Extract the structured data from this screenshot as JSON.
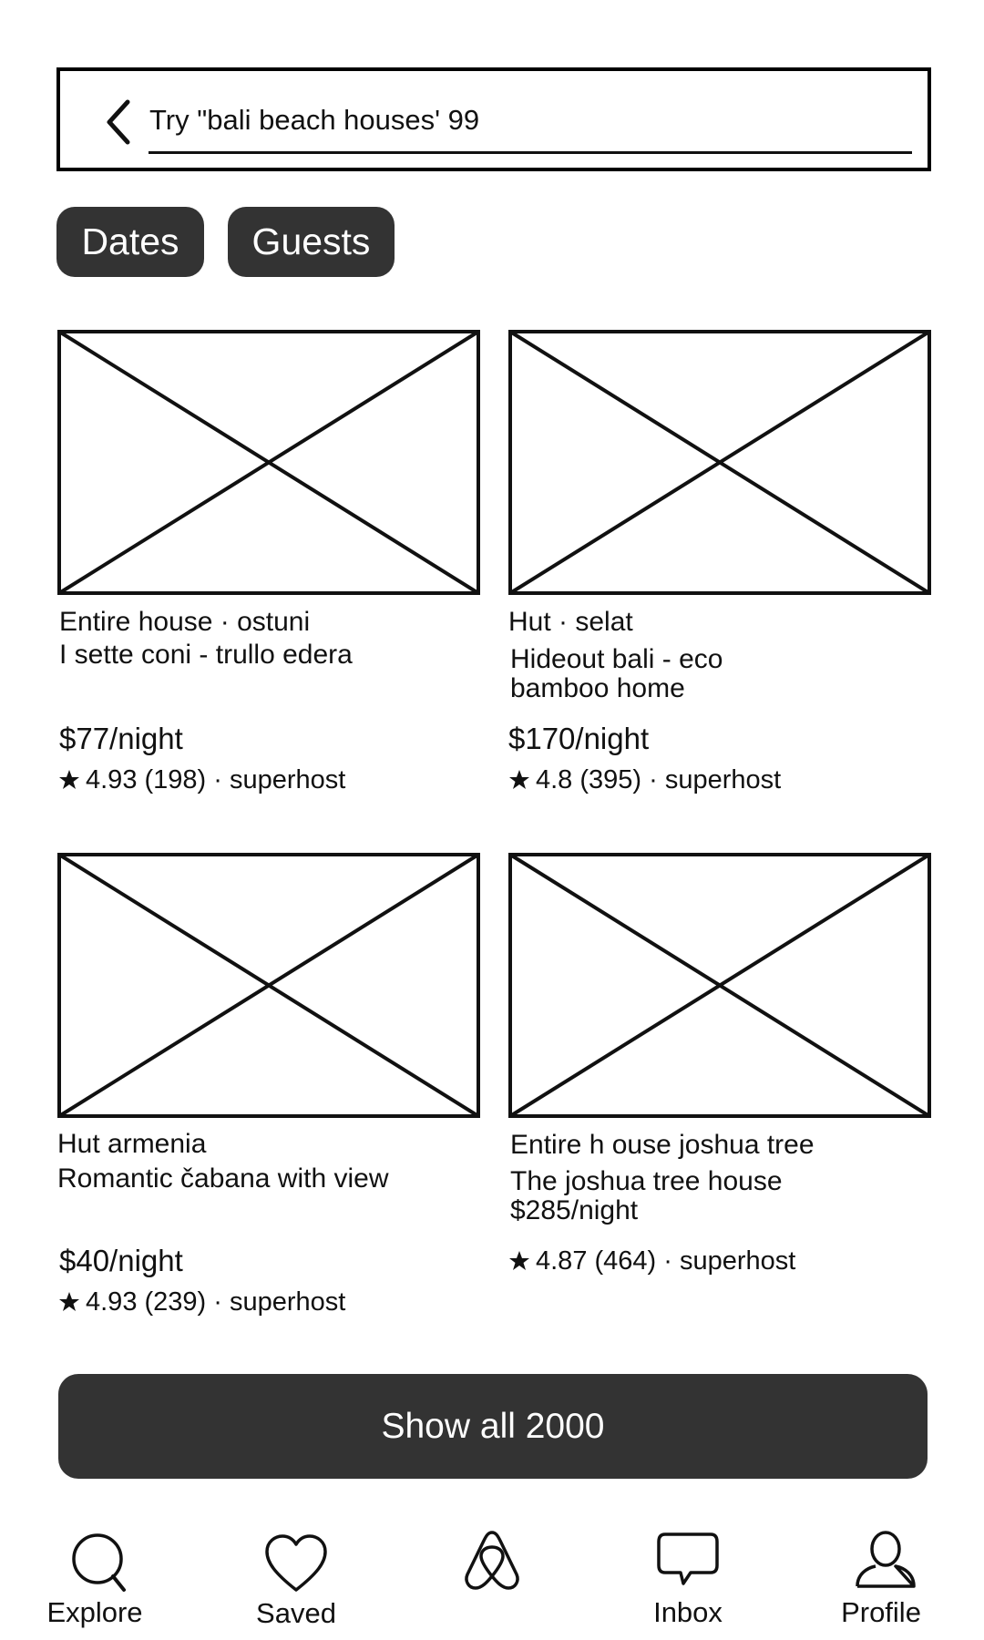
{
  "search": {
    "text": "Try \"bali beach houses' 99"
  },
  "chips": {
    "dates": "Dates",
    "guests": "Guests"
  },
  "listings": [
    {
      "type": "Entire house · ostuni",
      "title": "I sette coni - trullo edera",
      "price": "$77/night",
      "rating": "4.93 (198) · superhost"
    },
    {
      "type": "Hut · selat",
      "title": "Hideout bali - eco bamboo home",
      "price": "$170/night",
      "rating": "4.8 (395) · superhost"
    },
    {
      "type": "Hut armenia",
      "title": "Romantic čabana with view",
      "price": "$40/night",
      "rating": "4.93 (239) · superhost"
    },
    {
      "type": "Entire h ouse joshua tree",
      "title": "The joshua tree house",
      "price": "$285/night",
      "rating": "4.87 (464) · superhost"
    }
  ],
  "show_all": "Show all 2000",
  "nav": {
    "explore": "Explore",
    "saved": "Saved",
    "inbox": "Inbox",
    "profile": "Profile"
  },
  "icons": {
    "back": "chevron-left-icon",
    "star": "star-icon",
    "explore": "search-icon",
    "saved": "heart-icon",
    "home": "airbnb-logo-icon",
    "inbox": "chat-bubble-icon",
    "profile": "user-icon"
  },
  "colors": {
    "chip_bg": "#333333",
    "button_bg": "#333333",
    "text": "#111111"
  }
}
